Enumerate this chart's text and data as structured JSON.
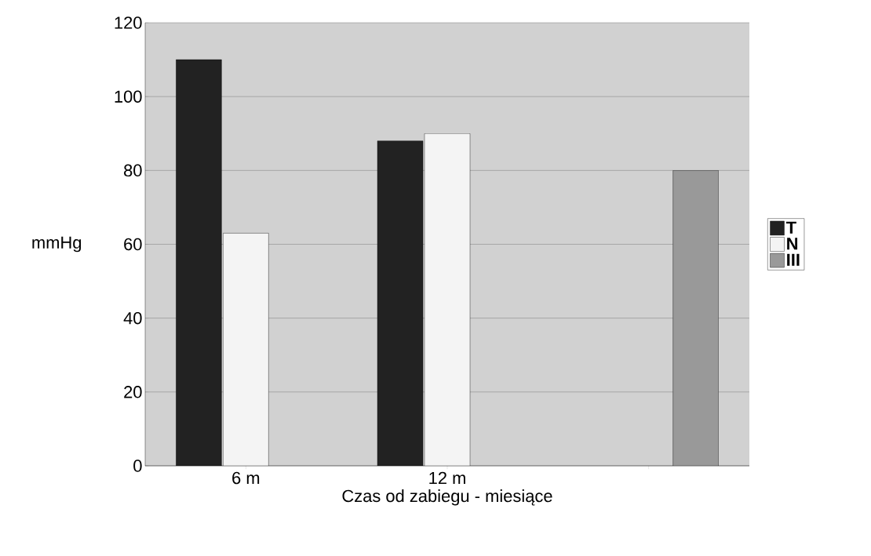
{
  "chart_data": {
    "type": "bar",
    "xlabel": "Czas od zabiegu - miesiące",
    "ylabel": "mmHg",
    "categories": [
      "6 m",
      "12 m",
      null
    ],
    "series": [
      {
        "name": "T",
        "color": "#222222",
        "values": [
          110,
          88,
          null
        ]
      },
      {
        "name": "N",
        "color": "#f4f4f4",
        "values": [
          63,
          90,
          null
        ]
      },
      {
        "name": "III",
        "color": "#999999",
        "values": [
          null,
          null,
          80
        ]
      }
    ],
    "ylim": [
      0,
      120
    ],
    "yticks": [
      0,
      20,
      40,
      60,
      80,
      100,
      120
    ],
    "grid": "y",
    "legend": "right"
  }
}
